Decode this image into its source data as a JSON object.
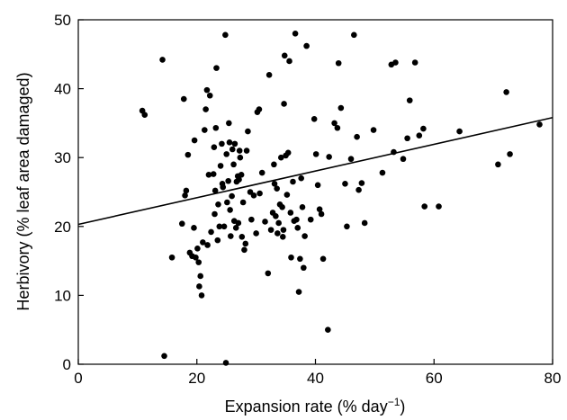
{
  "chart_data": {
    "type": "scatter",
    "title": "",
    "xlabel": "Expansion rate (% day",
    "xlabel_superscript": "−1",
    "xlabel_suffix": ")",
    "ylabel": "Herbivory (% leaf area damaged)",
    "xlim": [
      0,
      80
    ],
    "ylim": [
      0,
      50
    ],
    "xticks": [
      0,
      20,
      40,
      60,
      80
    ],
    "yticks": [
      0,
      10,
      20,
      30,
      40,
      50
    ],
    "grid": false,
    "legend": "none",
    "marker_color": "#000000",
    "trendline": {
      "x": [
        0,
        80
      ],
      "y": [
        20.3,
        35.8
      ]
    },
    "points": [
      [
        10.8,
        36.8
      ],
      [
        11.2,
        36.2
      ],
      [
        14.2,
        44.2
      ],
      [
        14.5,
        1.2
      ],
      [
        15.8,
        15.5
      ],
      [
        17.5,
        20.4
      ],
      [
        17.8,
        38.5
      ],
      [
        18.0,
        24.5
      ],
      [
        18.2,
        25.2
      ],
      [
        18.5,
        30.4
      ],
      [
        18.8,
        16.2
      ],
      [
        19.2,
        15.7
      ],
      [
        19.5,
        19.8
      ],
      [
        19.6,
        32.5
      ],
      [
        19.8,
        15.5
      ],
      [
        20.1,
        16.8
      ],
      [
        20.3,
        14.8
      ],
      [
        20.4,
        11.3
      ],
      [
        20.6,
        12.8
      ],
      [
        20.8,
        10.0
      ],
      [
        21.0,
        17.7
      ],
      [
        21.3,
        34.0
      ],
      [
        21.5,
        37.0
      ],
      [
        21.7,
        39.8
      ],
      [
        21.8,
        17.3
      ],
      [
        22.0,
        27.5
      ],
      [
        22.2,
        39.0
      ],
      [
        22.4,
        19.2
      ],
      [
        22.8,
        27.6
      ],
      [
        22.9,
        31.5
      ],
      [
        23.0,
        21.8
      ],
      [
        23.1,
        25.2
      ],
      [
        23.2,
        34.3
      ],
      [
        23.3,
        43.0
      ],
      [
        23.5,
        18.0
      ],
      [
        23.6,
        23.2
      ],
      [
        23.8,
        20.0
      ],
      [
        24.0,
        28.8
      ],
      [
        24.2,
        32.0
      ],
      [
        24.3,
        26.2
      ],
      [
        24.4,
        25.7
      ],
      [
        24.6,
        20.0
      ],
      [
        24.8,
        47.8
      ],
      [
        24.9,
        0.2
      ],
      [
        25.0,
        30.5
      ],
      [
        25.1,
        23.5
      ],
      [
        25.3,
        26.6
      ],
      [
        25.4,
        35.0
      ],
      [
        25.5,
        32.2
      ],
      [
        25.6,
        22.4
      ],
      [
        25.7,
        18.6
      ],
      [
        25.9,
        24.4
      ],
      [
        26.0,
        31.2
      ],
      [
        26.2,
        29.0
      ],
      [
        26.3,
        20.8
      ],
      [
        26.4,
        32.0
      ],
      [
        26.6,
        19.8
      ],
      [
        26.7,
        26.5
      ],
      [
        26.9,
        27.3
      ],
      [
        27.0,
        20.5
      ],
      [
        27.1,
        26.8
      ],
      [
        27.2,
        31.0
      ],
      [
        27.3,
        30.0
      ],
      [
        27.5,
        27.5
      ],
      [
        27.6,
        18.5
      ],
      [
        27.8,
        23.5
      ],
      [
        28.0,
        16.6
      ],
      [
        28.2,
        17.5
      ],
      [
        28.4,
        31.0
      ],
      [
        28.6,
        33.8
      ],
      [
        29.0,
        25.0
      ],
      [
        29.2,
        21.0
      ],
      [
        29.6,
        24.5
      ],
      [
        30.0,
        19.0
      ],
      [
        30.2,
        36.6
      ],
      [
        30.5,
        37.0
      ],
      [
        30.6,
        24.8
      ],
      [
        31.0,
        27.8
      ],
      [
        31.5,
        20.7
      ],
      [
        32.0,
        13.2
      ],
      [
        32.2,
        42.0
      ],
      [
        32.5,
        19.5
      ],
      [
        32.8,
        22.0
      ],
      [
        33.0,
        29.0
      ],
      [
        33.1,
        26.2
      ],
      [
        33.3,
        21.5
      ],
      [
        33.5,
        25.5
      ],
      [
        33.6,
        19.0
      ],
      [
        33.8,
        20.5
      ],
      [
        34.0,
        23.2
      ],
      [
        34.2,
        30.0
      ],
      [
        34.4,
        22.8
      ],
      [
        34.5,
        18.5
      ],
      [
        34.6,
        19.5
      ],
      [
        34.7,
        37.8
      ],
      [
        34.8,
        44.8
      ],
      [
        35.0,
        30.3
      ],
      [
        35.2,
        24.6
      ],
      [
        35.4,
        30.7
      ],
      [
        35.6,
        44.0
      ],
      [
        35.8,
        22.0
      ],
      [
        35.9,
        15.5
      ],
      [
        36.2,
        26.5
      ],
      [
        36.4,
        20.8
      ],
      [
        36.6,
        48.0
      ],
      [
        36.8,
        21.0
      ],
      [
        37.0,
        19.8
      ],
      [
        37.2,
        10.5
      ],
      [
        37.4,
        15.3
      ],
      [
        37.6,
        27.0
      ],
      [
        37.8,
        22.8
      ],
      [
        38.0,
        14.0
      ],
      [
        38.2,
        18.6
      ],
      [
        38.5,
        46.2
      ],
      [
        39.2,
        21.0
      ],
      [
        39.8,
        35.6
      ],
      [
        40.1,
        30.5
      ],
      [
        40.4,
        26.0
      ],
      [
        40.7,
        22.5
      ],
      [
        41.0,
        21.8
      ],
      [
        41.3,
        15.3
      ],
      [
        42.1,
        5.0
      ],
      [
        42.3,
        30.1
      ],
      [
        43.2,
        35.0
      ],
      [
        43.7,
        34.3
      ],
      [
        43.9,
        43.7
      ],
      [
        44.3,
        37.2
      ],
      [
        45.0,
        26.2
      ],
      [
        45.3,
        20.0
      ],
      [
        46.0,
        29.8
      ],
      [
        46.5,
        47.8
      ],
      [
        47.0,
        33.0
      ],
      [
        47.3,
        25.3
      ],
      [
        47.8,
        26.3
      ],
      [
        48.3,
        20.5
      ],
      [
        49.8,
        34.0
      ],
      [
        51.3,
        27.8
      ],
      [
        52.8,
        43.5
      ],
      [
        53.2,
        30.8
      ],
      [
        53.5,
        43.8
      ],
      [
        54.8,
        29.8
      ],
      [
        55.5,
        32.8
      ],
      [
        55.9,
        38.3
      ],
      [
        56.8,
        43.8
      ],
      [
        57.5,
        33.2
      ],
      [
        58.2,
        34.2
      ],
      [
        58.4,
        22.9
      ],
      [
        60.8,
        22.9
      ],
      [
        64.3,
        33.8
      ],
      [
        70.8,
        29.0
      ],
      [
        72.2,
        39.5
      ],
      [
        72.8,
        30.5
      ],
      [
        77.8,
        34.8
      ]
    ]
  }
}
